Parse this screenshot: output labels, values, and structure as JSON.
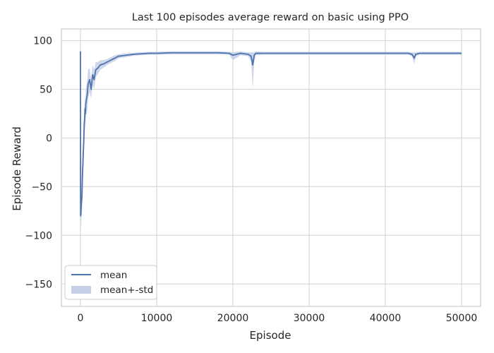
{
  "chart_data": {
    "type": "line",
    "title": "Last 100 episodes average reward on basic using PPO",
    "xlabel": "Episode",
    "ylabel": "Episode Reward",
    "xlim": [
      -2500,
      52500
    ],
    "ylim": [
      -173,
      112
    ],
    "xticks": [
      0,
      10000,
      20000,
      30000,
      40000,
      50000
    ],
    "yticks": [
      -150,
      -100,
      -50,
      0,
      50,
      100
    ],
    "grid": true,
    "legend_position": "bottom-left",
    "colors": {
      "mean": "#4c72b0",
      "band": "#c5d0e6",
      "grid": "#d9d9d9",
      "spine": "#cccccc"
    },
    "series": [
      {
        "name": "mean",
        "x": [
          0,
          20,
          60,
          100,
          150,
          200,
          250,
          300,
          350,
          400,
          450,
          500,
          550,
          600,
          650,
          700,
          800,
          900,
          1000,
          1200,
          1400,
          1600,
          1800,
          2000,
          2300,
          2600,
          3000,
          3500,
          4000,
          4500,
          5000,
          6000,
          7000,
          8000,
          9000,
          10000,
          12000,
          14000,
          16000,
          18000,
          19500,
          20000,
          21000,
          22000,
          22400,
          22600,
          22800,
          23000,
          24000,
          26000,
          28000,
          30000,
          32000,
          34000,
          36000,
          38000,
          40000,
          42000,
          43000,
          43500,
          43800,
          44000,
          44500,
          46000,
          48000,
          50000
        ],
        "values": [
          89,
          -80,
          -78,
          -70,
          -65,
          -60,
          -40,
          -30,
          -20,
          -10,
          0,
          15,
          20,
          30,
          25,
          35,
          40,
          45,
          55,
          60,
          50,
          65,
          60,
          70,
          72,
          75,
          76,
          78,
          80,
          82,
          84,
          85,
          86,
          86.5,
          87,
          87,
          87.5,
          87.5,
          87.5,
          87.5,
          87,
          85,
          87,
          86,
          84,
          75,
          85,
          87,
          87,
          87,
          87,
          87,
          87,
          87,
          87,
          87,
          87,
          87,
          87,
          86,
          82,
          86,
          87,
          87,
          87,
          87
        ]
      },
      {
        "name": "mean+-std",
        "x": [
          0,
          20,
          60,
          100,
          150,
          200,
          250,
          300,
          350,
          400,
          450,
          500,
          550,
          600,
          650,
          700,
          800,
          900,
          1000,
          1200,
          1400,
          1600,
          1800,
          2000,
          2300,
          2600,
          3000,
          3500,
          4000,
          4500,
          5000,
          6000,
          7000,
          8000,
          9000,
          10000,
          12000,
          14000,
          16000,
          18000,
          19500,
          20000,
          21000,
          22000,
          22400,
          22600,
          22800,
          23000,
          24000,
          26000,
          28000,
          30000,
          32000,
          34000,
          36000,
          38000,
          40000,
          42000,
          43000,
          43500,
          43800,
          44000,
          44500,
          46000,
          48000,
          50000
        ],
        "lower": [
          85,
          -100,
          -95,
          -85,
          -80,
          -75,
          -60,
          -50,
          -40,
          -30,
          -15,
          0,
          5,
          15,
          10,
          20,
          25,
          30,
          40,
          48,
          40,
          55,
          50,
          62,
          66,
          70,
          72,
          75,
          77,
          79,
          82,
          83,
          84.5,
          85,
          85.5,
          85.5,
          86,
          86,
          86,
          86,
          85.5,
          80,
          85,
          84,
          78,
          50,
          78,
          85,
          85.5,
          85.5,
          85.5,
          85.5,
          85.5,
          85.5,
          85.5,
          85.5,
          85.5,
          85.5,
          85.5,
          84,
          76,
          84,
          85.5,
          85.5,
          85.5,
          85.5
        ],
        "upper": [
          92,
          -60,
          -60,
          -55,
          -50,
          -45,
          -20,
          -10,
          0,
          10,
          15,
          30,
          35,
          45,
          40,
          50,
          55,
          60,
          70,
          72,
          60,
          75,
          70,
          78,
          78,
          80,
          80,
          81,
          83,
          85,
          86,
          87,
          87.5,
          88,
          88.5,
          88.5,
          89,
          89,
          89,
          89,
          88.5,
          88,
          89,
          88,
          88,
          88,
          88,
          89,
          88.5,
          88.5,
          88.5,
          88.5,
          88.5,
          88.5,
          88.5,
          88.5,
          88.5,
          88.5,
          88.5,
          88,
          88,
          88,
          88.5,
          88.5,
          88.5,
          88.5
        ]
      }
    ]
  }
}
